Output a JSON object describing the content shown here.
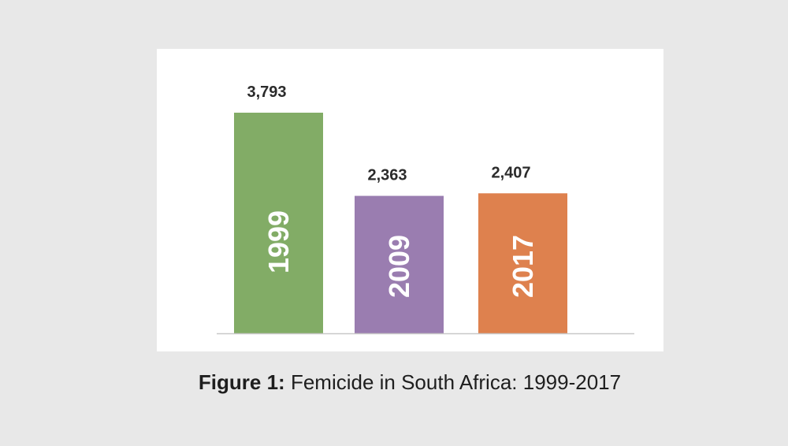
{
  "caption": {
    "prefix": "Figure 1:",
    "text": "Femicide in South Africa: 1999-2017"
  },
  "chart_data": {
    "type": "bar",
    "categories": [
      "1999",
      "2009",
      "2017"
    ],
    "values": [
      3793,
      2363,
      2407
    ],
    "value_labels": [
      "3,793",
      "2,363",
      "2,407"
    ],
    "colors": [
      "#82ac66",
      "#9a7db0",
      "#de814e"
    ],
    "title": "",
    "xlabel": "",
    "ylabel": "",
    "ylim": [
      0,
      3793
    ],
    "grid": false,
    "legend": "none",
    "category_labels_position": "inside-bar-rotated"
  }
}
